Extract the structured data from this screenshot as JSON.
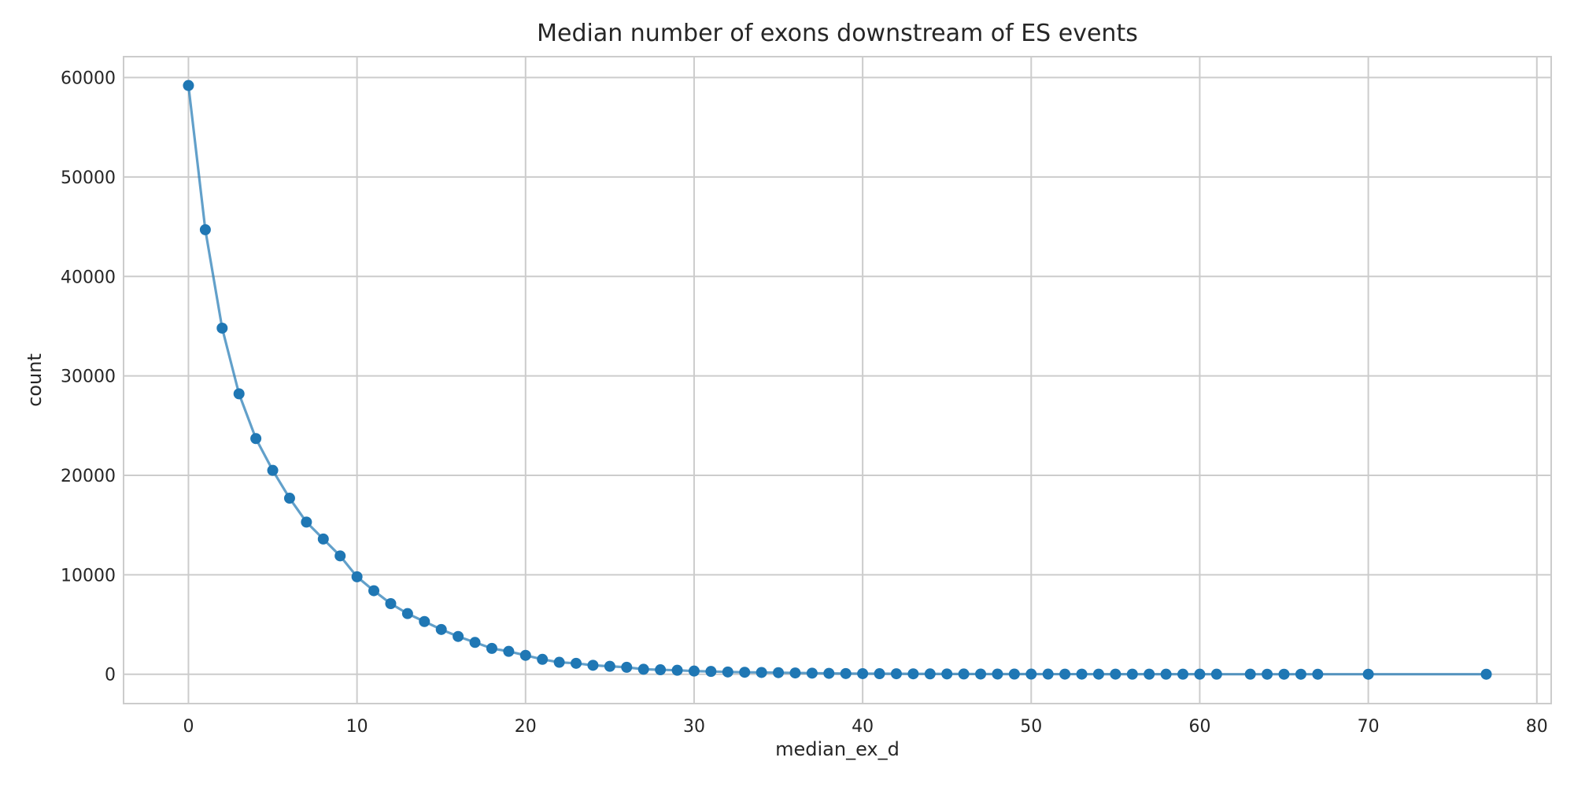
{
  "chart_data": {
    "type": "line",
    "title": "Median number of exons downstream of ES events",
    "xlabel": "median_ex_d",
    "ylabel": "count",
    "xlim": [
      -3.85,
      80.85
    ],
    "ylim": [
      -2950,
      62100
    ],
    "xticks": [
      0,
      10,
      20,
      30,
      40,
      50,
      60,
      70,
      80
    ],
    "yticks": [
      0,
      10000,
      20000,
      30000,
      40000,
      50000,
      60000
    ],
    "grid": true,
    "legend": "none",
    "series": [
      {
        "color": "#1f77b4",
        "x": [
          0,
          1,
          2,
          3,
          4,
          5,
          6,
          7,
          8,
          9,
          10,
          11,
          12,
          13,
          14,
          15,
          16,
          17,
          18,
          19,
          20,
          21,
          22,
          23,
          24,
          25,
          26,
          27,
          28,
          29,
          30,
          31,
          32,
          33,
          34,
          35,
          36,
          37,
          38,
          39,
          40,
          41,
          42,
          43,
          44,
          45,
          46,
          47,
          48,
          49,
          50,
          51,
          52,
          53,
          54,
          55,
          56,
          57,
          58,
          59,
          60,
          61,
          63,
          64,
          65,
          66,
          67,
          70,
          77
        ],
        "y": [
          59200,
          44700,
          34800,
          28200,
          23700,
          20500,
          17700,
          15300,
          13600,
          11900,
          9800,
          8400,
          7100,
          6100,
          5300,
          4500,
          3800,
          3200,
          2600,
          2300,
          1900,
          1500,
          1200,
          1100,
          900,
          800,
          700,
          500,
          450,
          400,
          320,
          280,
          230,
          200,
          180,
          160,
          130,
          110,
          90,
          70,
          60,
          55,
          50,
          40,
          35,
          30,
          25,
          22,
          20,
          18,
          15,
          14,
          12,
          11,
          10,
          9,
          8,
          7,
          6,
          5,
          5,
          4,
          3,
          2,
          2,
          2,
          2,
          1,
          1
        ]
      }
    ]
  }
}
